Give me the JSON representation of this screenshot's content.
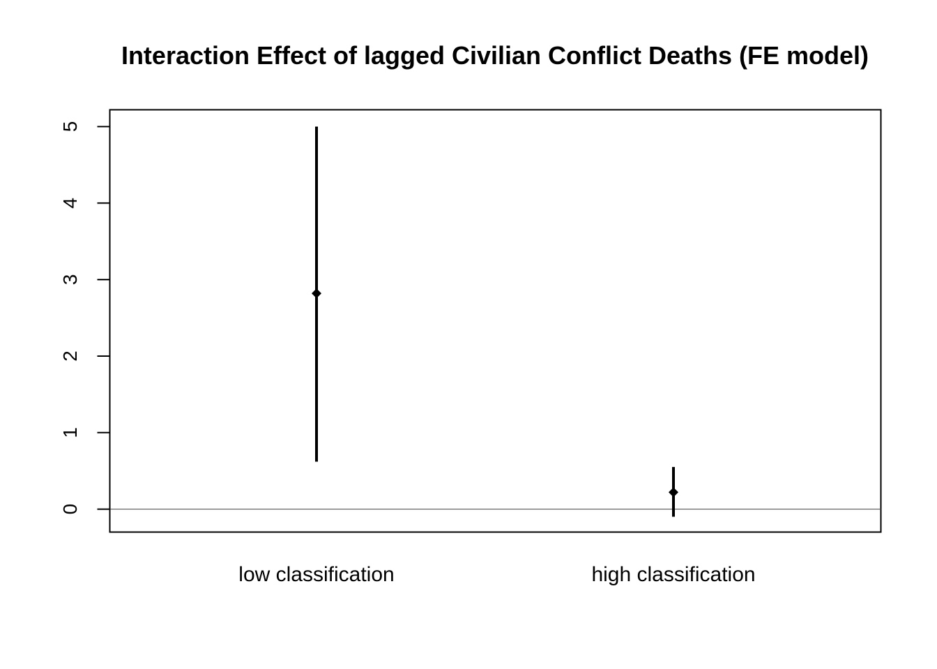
{
  "chart_data": {
    "type": "errorbar",
    "title": "Interaction Effect of lagged Civilian Conflict Deaths (FE model)",
    "xlabel": "",
    "ylabel": "",
    "categories": [
      "low classification",
      "high classification"
    ],
    "estimates": [
      2.82,
      0.22
    ],
    "lower": [
      0.62,
      -0.1
    ],
    "upper": [
      5.0,
      0.55
    ],
    "y_ticks": [
      0,
      1,
      2,
      3,
      4,
      5
    ],
    "ylim": [
      -0.3,
      5.22
    ],
    "reference_line": 0,
    "grid": false,
    "marker": "diamond",
    "color": "#000000",
    "reference_line_color": "#555555"
  }
}
